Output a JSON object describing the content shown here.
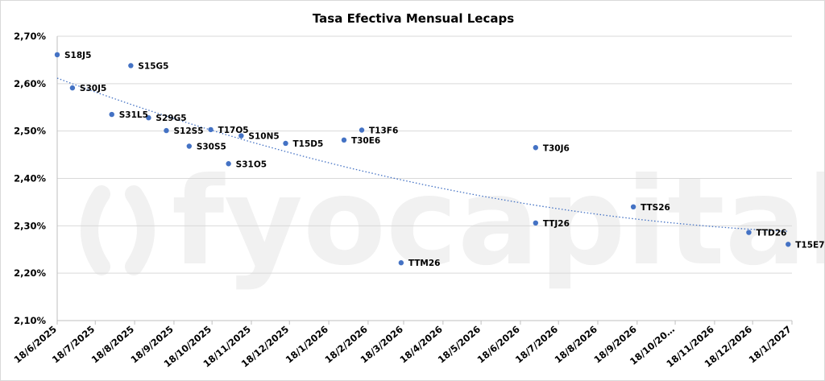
{
  "chart_data": {
    "type": "scatter",
    "title": "Tasa Efectiva Mensual Lecaps",
    "watermark": "fyocapital",
    "ylim": [
      2.1,
      2.7
    ],
    "yticks": [
      2.1,
      2.2,
      2.3,
      2.4,
      2.5,
      2.6,
      2.7
    ],
    "ytick_labels": [
      "2,10%",
      "2,20%",
      "2,30%",
      "2,40%",
      "2,50%",
      "2,60%",
      "2,70%"
    ],
    "xlim": [
      "2025-06-18",
      "2027-01-18"
    ],
    "xticks": [
      "2025-06-18",
      "2025-07-18",
      "2025-08-18",
      "2025-09-18",
      "2025-10-18",
      "2025-11-18",
      "2025-12-18",
      "2026-01-18",
      "2026-02-18",
      "2026-03-18",
      "2026-04-18",
      "2026-05-18",
      "2026-06-18",
      "2026-07-18",
      "2026-08-18",
      "2026-09-18",
      "2026-10-18",
      "2026-11-18",
      "2026-12-18",
      "2027-01-18"
    ],
    "xtick_labels": [
      "18/6/2025",
      "18/7/2025",
      "18/8/2025",
      "18/9/2025",
      "18/10/2025",
      "18/11/2025",
      "18/12/2025",
      "18/1/2026",
      "18/2/2026",
      "18/3/2026",
      "18/4/2026",
      "18/5/2026",
      "18/6/2026",
      "18/7/2026",
      "18/8/2026",
      "18/9/2026",
      "18/10/20…",
      "18/11/2026",
      "18/12/2026",
      "18/1/2027"
    ],
    "grid": "horizontal",
    "marker_color": "#4472c4",
    "trendline_color": "#4472c4",
    "trendline": "dotted",
    "points": [
      {
        "label": "S18J5",
        "x": "2025-06-18",
        "y": 2.661
      },
      {
        "label": "S30J5",
        "x": "2025-06-30",
        "y": 2.591
      },
      {
        "label": "S31L5",
        "x": "2025-07-31",
        "y": 2.535
      },
      {
        "label": "S15G5",
        "x": "2025-08-15",
        "y": 2.638
      },
      {
        "label": "S29G5",
        "x": "2025-08-29",
        "y": 2.528
      },
      {
        "label": "S12S5",
        "x": "2025-09-12",
        "y": 2.501
      },
      {
        "label": "S30S5",
        "x": "2025-09-30",
        "y": 2.468
      },
      {
        "label": "T17O5",
        "x": "2025-10-17",
        "y": 2.503
      },
      {
        "label": "S31O5",
        "x": "2025-10-31",
        "y": 2.431
      },
      {
        "label": "S10N5",
        "x": "2025-11-10",
        "y": 2.49
      },
      {
        "label": "T15D5",
        "x": "2025-12-15",
        "y": 2.474
      },
      {
        "label": "T30E6",
        "x": "2026-01-30",
        "y": 2.481
      },
      {
        "label": "T13F6",
        "x": "2026-02-13",
        "y": 2.502
      },
      {
        "label": "TTM26",
        "x": "2026-03-16",
        "y": 2.222
      },
      {
        "label": "T30J6",
        "x": "2026-06-30",
        "y": 2.465
      },
      {
        "label": "TTJ26",
        "x": "2026-06-30",
        "y": 2.306
      },
      {
        "label": "TTS26",
        "x": "2026-09-15",
        "y": 2.34
      },
      {
        "label": "TTD26",
        "x": "2026-12-15",
        "y": 2.286
      },
      {
        "label": "T15E7",
        "x": "2027-01-15",
        "y": 2.261
      }
    ]
  }
}
